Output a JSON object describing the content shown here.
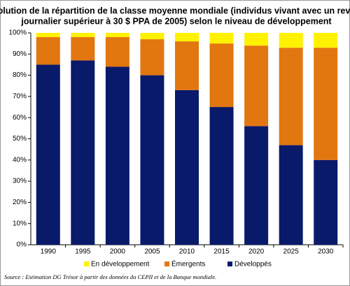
{
  "chart_data": {
    "type": "stacked_bar",
    "title": [
      "Évolution de la répartition de la classe moyenne mondiale (individus vivant avec un revenu",
      "journalier supérieur à 30 $ PPA de 2005)  selon le niveau de développement"
    ],
    "categories": [
      "1990",
      "1995",
      "2000",
      "2005",
      "2010",
      "2015",
      "2020",
      "2025",
      "2030"
    ],
    "series": [
      {
        "name": "Développés",
        "color": "#0a1a6b",
        "values": [
          85,
          87,
          84,
          80,
          73,
          65,
          56,
          47,
          40
        ]
      },
      {
        "name": "Émergents",
        "color": "#e2760f",
        "values": [
          13,
          11,
          14,
          17,
          23,
          30,
          38,
          46,
          53
        ]
      },
      {
        "name": "En développement",
        "color": "#fff200",
        "values": [
          2,
          2,
          2,
          3,
          4,
          5,
          6,
          7,
          7
        ]
      }
    ],
    "ylim": [
      0,
      100
    ],
    "yticks": [
      {
        "value": 0,
        "label": "0%"
      },
      {
        "value": 10,
        "label": "10%"
      },
      {
        "value": 20,
        "label": "20%"
      },
      {
        "value": 30,
        "label": "30%"
      },
      {
        "value": 40,
        "label": "40%"
      },
      {
        "value": 50,
        "label": "50%"
      },
      {
        "value": 60,
        "label": "60%"
      },
      {
        "value": 70,
        "label": "70%"
      },
      {
        "value": 80,
        "label": "80%"
      },
      {
        "value": 90,
        "label": "90%"
      },
      {
        "value": 100,
        "label": "100%"
      }
    ],
    "source": "Source : Estimation DG Trésor à partir des données du CEPII et de la Banque mondiale."
  }
}
